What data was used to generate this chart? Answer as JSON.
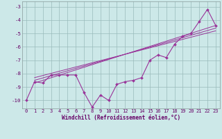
{
  "xlabel": "Windchill (Refroidissement éolien,°C)",
  "background_color": "#cce8e8",
  "line_color": "#993399",
  "grid_color": "#99bbbb",
  "xlim": [
    -0.5,
    23.5
  ],
  "ylim": [
    -10.6,
    -2.6
  ],
  "yticks": [
    -10,
    -9,
    -8,
    -7,
    -6,
    -5,
    -4,
    -3
  ],
  "xticks": [
    0,
    1,
    2,
    3,
    4,
    5,
    6,
    7,
    8,
    9,
    10,
    11,
    12,
    13,
    14,
    15,
    16,
    17,
    18,
    19,
    20,
    21,
    22,
    23
  ],
  "main_series": {
    "x": [
      0,
      1,
      2,
      3,
      4,
      5,
      6,
      7,
      8,
      9,
      10,
      11,
      12,
      13,
      14,
      15,
      16,
      17,
      18,
      19,
      20,
      21,
      22,
      23
    ],
    "y": [
      -10.0,
      -8.6,
      -8.7,
      -8.1,
      -8.1,
      -8.1,
      -8.1,
      -9.4,
      -10.5,
      -9.6,
      -10.0,
      -8.8,
      -8.6,
      -8.5,
      -8.3,
      -7.0,
      -6.6,
      -6.8,
      -5.8,
      -5.2,
      -5.0,
      -4.1,
      -3.2,
      -4.4
    ]
  },
  "trend_lines": [
    {
      "x": [
        1,
        23
      ],
      "y": [
        -8.7,
        -4.4
      ]
    },
    {
      "x": [
        1,
        23
      ],
      "y": [
        -8.5,
        -4.6
      ]
    },
    {
      "x": [
        1,
        23
      ],
      "y": [
        -8.3,
        -4.8
      ]
    }
  ],
  "tick_color": "#660066",
  "label_fontsize": 5.0,
  "xlabel_fontsize": 5.5
}
